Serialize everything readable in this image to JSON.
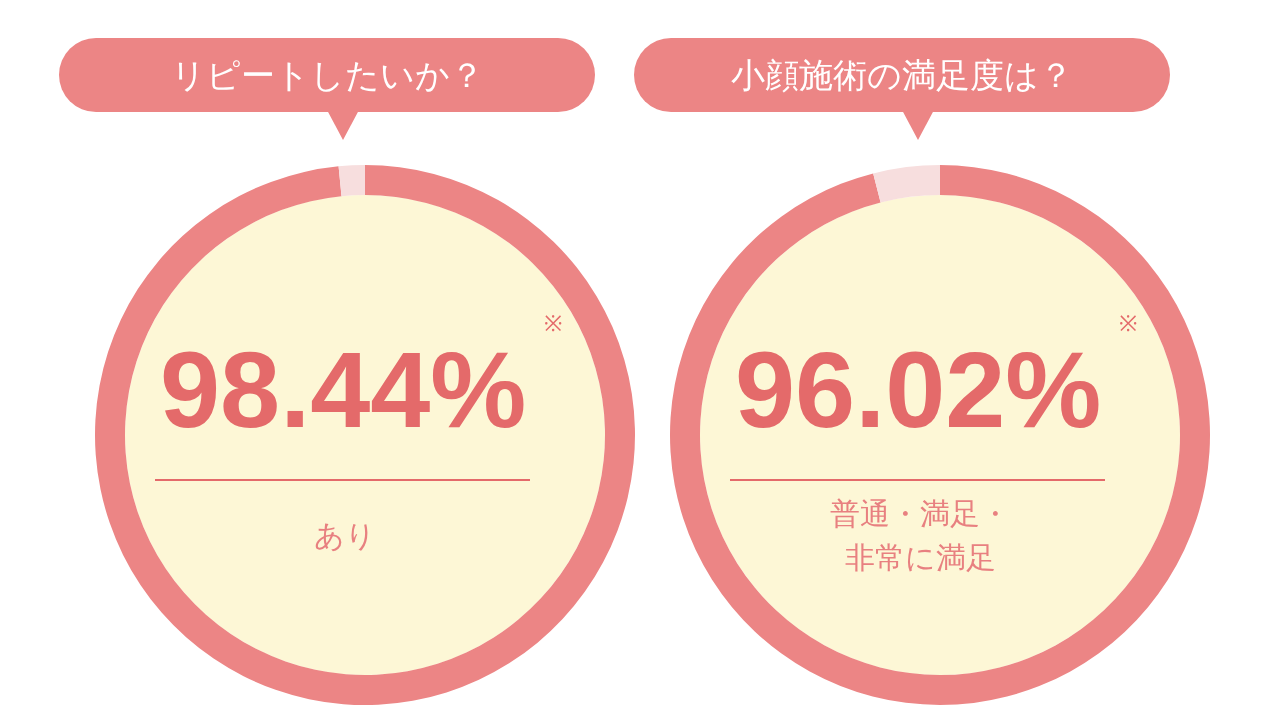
{
  "chart_data": [
    {
      "type": "donut",
      "title": "リピートしたいか？",
      "categories": [
        "あり",
        null
      ],
      "values": [
        98.44,
        1.56
      ],
      "colors": [
        "#ec8585",
        "#f7dede"
      ],
      "value_labels": [
        "98.44%",
        null
      ],
      "annotations": [
        "※"
      ]
    },
    {
      "type": "donut",
      "title": "小顔施術の満足度は？",
      "categories": [
        "普通・満足・非常に満足",
        null
      ],
      "values": [
        96.02,
        3.98
      ],
      "colors": [
        "#ec8585",
        "#f7dede"
      ],
      "value_labels": [
        "96.02%",
        null
      ],
      "annotations": [
        "※"
      ]
    }
  ]
}
